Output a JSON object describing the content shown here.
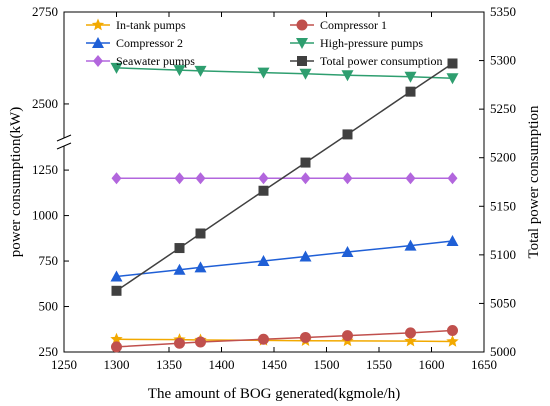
{
  "chart_data": {
    "type": "line",
    "xlabel": "The amount of BOG generated(kgmole/h)",
    "ylabel_left": "power consumption(kW)",
    "ylabel_right": "Total power consumption",
    "xlim": [
      1250,
      1650
    ],
    "x_ticks": [
      1250,
      1300,
      1350,
      1400,
      1450,
      1500,
      1550,
      1600,
      1650
    ],
    "y_left_lower_range": [
      250,
      1300
    ],
    "y_left_lower_ticks": [
      250,
      500,
      750,
      1000,
      1250
    ],
    "y_left_upper_range": [
      2440,
      2750
    ],
    "y_left_upper_ticks": [
      2500,
      2750
    ],
    "y_left_axis_break": true,
    "y_right_range": [
      5000,
      5350
    ],
    "y_right_ticks": [
      5000,
      5050,
      5100,
      5150,
      5200,
      5250,
      5300,
      5350
    ],
    "x": [
      1300,
      1360,
      1380,
      1440,
      1480,
      1520,
      1580,
      1620
    ],
    "legend": {
      "position": "top",
      "columns": 2
    },
    "series": [
      {
        "name": "In-tank pumps",
        "axis": "left",
        "color": "#f2a900",
        "marker": "star",
        "values": [
          320,
          318,
          316,
          314,
          312,
          311,
          310,
          308
        ]
      },
      {
        "name": "Compressor 1",
        "axis": "left",
        "color": "#c0504d",
        "marker": "circle",
        "values": [
          278,
          298,
          305,
          320,
          330,
          340,
          355,
          368
        ]
      },
      {
        "name": "Compressor 2",
        "axis": "left",
        "color": "#1f5fd6",
        "marker": "triangle-up",
        "values": [
          665,
          702,
          715,
          750,
          775,
          800,
          835,
          860
        ]
      },
      {
        "name": "High-pressure pumps",
        "axis": "left",
        "color": "#2e9e6f",
        "marker": "triangle-down",
        "values": [
          2598,
          2592,
          2590,
          2585,
          2582,
          2578,
          2574,
          2570
        ]
      },
      {
        "name": "Seawater pumps",
        "axis": "left",
        "color": "#b266dd",
        "marker": "diamond",
        "values": [
          1205,
          1205,
          1205,
          1205,
          1205,
          1205,
          1205,
          1205
        ]
      },
      {
        "name": "Total power consumption",
        "axis": "right",
        "color": "#404040",
        "marker": "square",
        "values": [
          5063,
          5107,
          5122,
          5166,
          5195,
          5224,
          5268,
          5297
        ]
      }
    ]
  }
}
